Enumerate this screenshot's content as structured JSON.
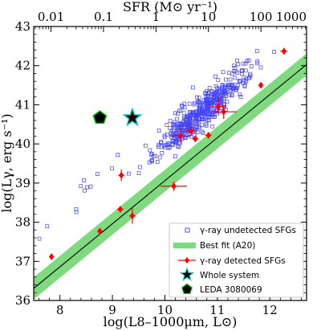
{
  "chart_data": {
    "type": "scatter",
    "xlabel": "log(L8–1000μm, L⊙)",
    "ylabel": "log(Lγ, erg s⁻¹)",
    "top_xlabel": "SFR (M⊙ yr⁻¹)",
    "xlim": [
      7.5,
      12.7
    ],
    "ylim": [
      36,
      43
    ],
    "x_ticks": [
      "8",
      "9",
      "10",
      "11",
      "12"
    ],
    "y_ticks": [
      "36",
      "37",
      "38",
      "39",
      "40",
      "41",
      "42",
      "43"
    ],
    "top_ticks": [
      "0.01",
      "0.1",
      "1",
      "10",
      "100",
      "1000"
    ],
    "top_tick_positions": [
      7.83,
      8.83,
      9.83,
      10.83,
      11.83,
      12.83
    ],
    "legend_position": "lower-right",
    "legend": [
      {
        "label": "γ-ray undetected SFGs",
        "marker": "square-open",
        "color": "#4040ff"
      },
      {
        "label": "Best fit (A20)",
        "marker": "band",
        "color": "#7fd97f"
      },
      {
        "label": "γ-ray detected SFGs",
        "marker": "diamond-errorbar",
        "color": "#ff0000"
      },
      {
        "label": "Whole system",
        "marker": "star",
        "color": "#000000"
      },
      {
        "label": "LEDA 3080069",
        "marker": "pentagon",
        "color": "#000000"
      }
    ],
    "colors": {
      "undetected": "#4040ff",
      "detected": "#ff0000",
      "band": "#7fd97f",
      "fit_line": "#000000",
      "star_edge": "#00c8c8",
      "pentagon_edge": "#00c800"
    },
    "best_fit": {
      "slope": 1.1,
      "intercept": 28.06,
      "band_half_width": 0.28
    },
    "series": [
      {
        "name": "γ-ray detected SFGs",
        "points": [
          {
            "x": 7.84,
            "y": 37.12,
            "xerr": 0.04,
            "yerr": 0.04
          },
          {
            "x": 8.76,
            "y": 37.77,
            "xerr": 0.05,
            "yerr": 0.06
          },
          {
            "x": 9.15,
            "y": 38.33,
            "xerr": 0.06,
            "yerr": 0.08
          },
          {
            "x": 9.17,
            "y": 39.2,
            "xerr": 0.06,
            "yerr": 0.15
          },
          {
            "x": 9.38,
            "y": 38.16,
            "xerr": 0.06,
            "yerr": 0.2
          },
          {
            "x": 10.17,
            "y": 38.92,
            "xerr": 0.25,
            "yerr": 0.12
          },
          {
            "x": 10.3,
            "y": 40.2,
            "xerr": 0.2,
            "yerr": 0.2
          },
          {
            "x": 10.58,
            "y": 40.13,
            "xerr": 0.06,
            "yerr": 0.08
          },
          {
            "x": 10.5,
            "y": 40.33,
            "xerr": 0.1,
            "yerr": 0.1
          },
          {
            "x": 10.83,
            "y": 40.22,
            "xerr": 0.06,
            "yerr": 0.08
          },
          {
            "x": 11.02,
            "y": 40.95,
            "xerr": 0.15,
            "yerr": 0.22
          },
          {
            "x": 11.12,
            "y": 40.82,
            "xerr": 0.25,
            "yerr": 0.18
          },
          {
            "x": 11.83,
            "y": 41.5,
            "xerr": 0.05,
            "yerr": 0.08
          },
          {
            "x": 12.27,
            "y": 42.37,
            "xerr": 0.07,
            "yerr": 0.08
          }
        ]
      },
      {
        "name": "Whole system",
        "points": [
          {
            "x": 9.38,
            "y": 40.67
          }
        ]
      },
      {
        "name": "LEDA 3080069",
        "points": [
          {
            "x": 8.76,
            "y": 40.67
          }
        ]
      },
      {
        "name": "γ-ray undetected SFGs",
        "count": 480,
        "points": []
      }
    ]
  }
}
